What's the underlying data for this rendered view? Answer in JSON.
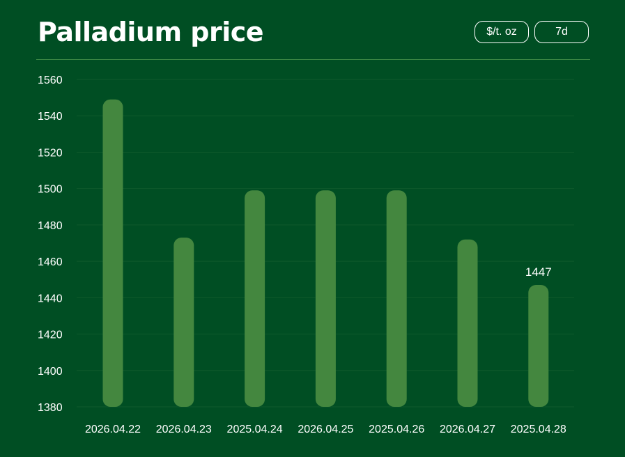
{
  "header": {
    "title": "Palladium price",
    "unit_label": "$/t. oz",
    "range_label": "7d"
  },
  "colors": {
    "background": "#004e23",
    "bar": "#44873f",
    "gridline": "#0f5a2c",
    "divider": "#3f8a46",
    "text": "#ffffff"
  },
  "chart_data": {
    "type": "bar",
    "categories": [
      "2026.04.22",
      "2026.04.23",
      "2025.04.24",
      "2026.04.25",
      "2025.04.26",
      "2026.04.27",
      "2025.04.28"
    ],
    "values": [
      1549,
      1473,
      1499,
      1499,
      1499,
      1472,
      1447
    ],
    "ylim": [
      1380,
      1560
    ],
    "yticks": [
      1380,
      1400,
      1420,
      1440,
      1460,
      1480,
      1500,
      1520,
      1540,
      1560
    ],
    "annotations": [
      {
        "category": "2025.04.28",
        "text": "1447"
      }
    ],
    "grid": true,
    "legend": "none"
  }
}
